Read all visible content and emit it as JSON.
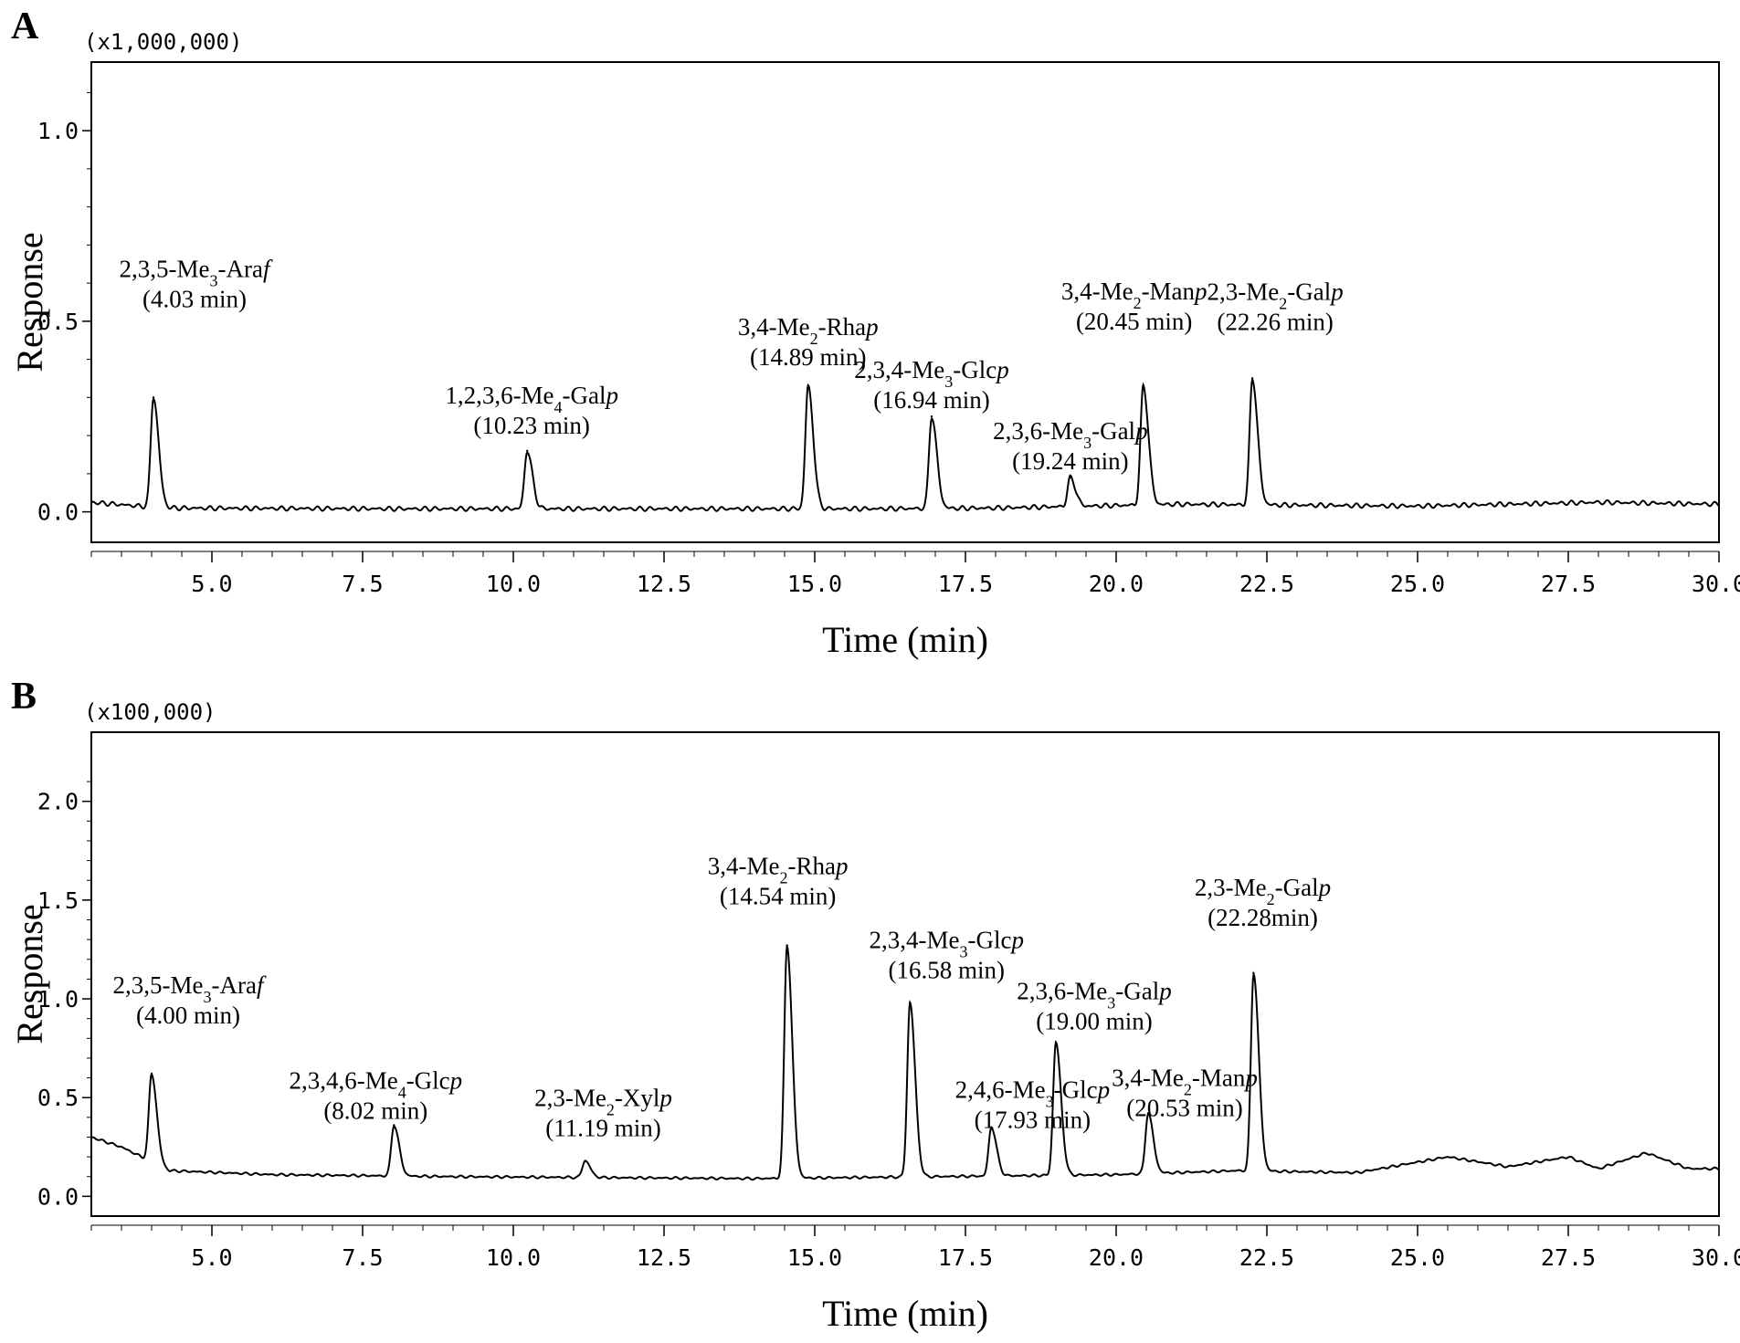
{
  "chart_data": [
    {
      "panel_label": "A",
      "type": "line",
      "scale_label": "(x1,000,000)",
      "xlabel": "Time (min)",
      "ylabel": "Response",
      "x_ticks": [
        "5.0",
        "7.5",
        "10.0",
        "12.5",
        "15.0",
        "17.5",
        "20.0",
        "22.5",
        "25.0",
        "27.5",
        "30.0"
      ],
      "y_ticks": [
        "0.0",
        "0.5",
        "1.0"
      ],
      "xlim": [
        3.0,
        30.0
      ],
      "ylim": [
        -0.08,
        1.18
      ],
      "baseline": [
        [
          3.0,
          0.025
        ],
        [
          4.2,
          0.01
        ],
        [
          8.0,
          0.008
        ],
        [
          16.0,
          0.008
        ],
        [
          18.0,
          0.01
        ],
        [
          21.0,
          0.02
        ],
        [
          25.0,
          0.015
        ],
        [
          28.0,
          0.025
        ],
        [
          30.0,
          0.02
        ]
      ],
      "series": [
        {
          "values": [
            [
              4.03,
              0.3
            ],
            [
              10.23,
              0.16
            ],
            [
              14.89,
              0.33
            ],
            [
              16.94,
              0.25
            ],
            [
              19.24,
              0.09
            ],
            [
              20.45,
              0.33
            ],
            [
              22.26,
              0.35
            ]
          ]
        }
      ],
      "annotations": [
        {
          "line1_a": "2,3,5-Me",
          "sub": "3",
          "line1_b": "-Ara",
          "ital": "f",
          "line2": "(4.03 min)"
        },
        {
          "line1_a": "1,2,3,6-Me",
          "sub": "4",
          "line1_b": "-Gal",
          "ital": "p",
          "line2": "(10.23 min)"
        },
        {
          "line1_a": "3,4-Me",
          "sub": "2",
          "line1_b": "-Rha",
          "ital": "p",
          "line2": "(14.89 min)"
        },
        {
          "line1_a": "2,3,4-Me",
          "sub": "3",
          "line1_b": "-Glc",
          "ital": "p",
          "line2": "(16.94 min)"
        },
        {
          "line1_a": "2,3,6-Me",
          "sub": "3",
          "line1_b": "-Gal",
          "ital": "p",
          "line2": "(19.24 min)"
        },
        {
          "line1_a": "3,4-Me",
          "sub": "2",
          "line1_b": "-Man",
          "ital": "p",
          "line2": "(20.45 min)"
        },
        {
          "line1_a": "2,3-Me",
          "sub": "2",
          "line1_b": "-Gal",
          "ital": "p",
          "line2": "(22.26 min)"
        }
      ]
    },
    {
      "panel_label": "B",
      "type": "line",
      "scale_label": "(x100,000)",
      "xlabel": "Time (min)",
      "ylabel": "Response",
      "x_ticks": [
        "5.0",
        "7.5",
        "10.0",
        "12.5",
        "15.0",
        "17.5",
        "20.0",
        "22.5",
        "25.0",
        "27.5",
        "30.0"
      ],
      "y_ticks": [
        "0.0",
        "0.5",
        "1.0",
        "1.5",
        "2.0"
      ],
      "xlim": [
        3.0,
        30.0
      ],
      "ylim": [
        -0.1,
        2.35
      ],
      "baseline": [
        [
          3.0,
          0.3
        ],
        [
          3.5,
          0.25
        ],
        [
          4.3,
          0.13
        ],
        [
          6.0,
          0.11
        ],
        [
          9.0,
          0.1
        ],
        [
          14.0,
          0.09
        ],
        [
          17.0,
          0.1
        ],
        [
          20.0,
          0.11
        ],
        [
          22.0,
          0.13
        ],
        [
          24.0,
          0.12
        ],
        [
          25.5,
          0.2
        ],
        [
          26.5,
          0.15
        ],
        [
          27.5,
          0.2
        ],
        [
          28.0,
          0.14
        ],
        [
          28.8,
          0.22
        ],
        [
          29.5,
          0.14
        ],
        [
          30.0,
          0.14
        ]
      ],
      "series": [
        {
          "values": [
            [
              4.0,
              0.62
            ],
            [
              8.02,
              0.36
            ],
            [
              11.19,
              0.18
            ],
            [
              14.54,
              1.27
            ],
            [
              16.58,
              0.98
            ],
            [
              17.93,
              0.35
            ],
            [
              19.0,
              0.78
            ],
            [
              20.53,
              0.42
            ],
            [
              22.28,
              1.13
            ]
          ]
        }
      ],
      "annotations": [
        {
          "line1_a": "2,3,5-Me",
          "sub": "3",
          "line1_b": "-Ara",
          "ital": "f",
          "line2": "(4.00 min)"
        },
        {
          "line1_a": "2,3,4,6-Me",
          "sub": "4",
          "line1_b": "-Glc",
          "ital": "p",
          "line2": "(8.02 min)"
        },
        {
          "line1_a": "2,3-Me",
          "sub": "2",
          "line1_b": "-Xyl",
          "ital": "p",
          "line2": "(11.19 min)"
        },
        {
          "line1_a": "3,4-Me",
          "sub": "2",
          "line1_b": "-Rha",
          "ital": "p",
          "line2": "(14.54 min)"
        },
        {
          "line1_a": "2,3,4-Me",
          "sub": "3",
          "line1_b": "-Glc",
          "ital": "p",
          "line2": "(16.58 min)"
        },
        {
          "line1_a": "2,4,6-Me",
          "sub": "3",
          "line1_b": "-Glc",
          "ital": "p",
          "line2": "(17.93 min)"
        },
        {
          "line1_a": "2,3,6-Me",
          "sub": "3",
          "line1_b": "-Gal",
          "ital": "p",
          "line2": "(19.00 min)"
        },
        {
          "line1_a": "3,4-Me",
          "sub": "2",
          "line1_b": "-Man",
          "ital": "p",
          "line2": "(20.53 min)"
        },
        {
          "line1_a": "2,3-Me",
          "sub": "2",
          "line1_b": "-Gal",
          "ital": "p",
          "line2": "(22.28min)"
        }
      ]
    }
  ]
}
